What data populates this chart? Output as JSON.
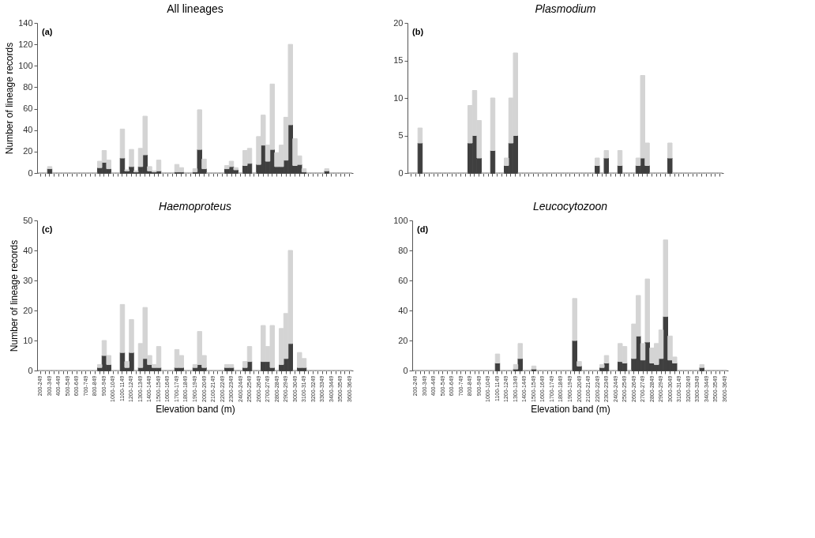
{
  "chart_data": [
    {
      "type": "bar",
      "title": "All lineages",
      "ylabel": "Number of lineage records",
      "annotations": [
        "(a)"
      ],
      "stacked": true,
      "grid": false,
      "ylim": [
        0,
        140
      ],
      "yticks": [
        0,
        20,
        40,
        60,
        80,
        100,
        120,
        140
      ],
      "categories": [
        null,
        null,
        null,
        null,
        null,
        null,
        null,
        null,
        null,
        null,
        null,
        null,
        null,
        null,
        null,
        null,
        null,
        null,
        null,
        null,
        null,
        null,
        null,
        null,
        null,
        null,
        null,
        null,
        null,
        null,
        null,
        null,
        null,
        null,
        null,
        null,
        null,
        null,
        null,
        null,
        null,
        null,
        null,
        null,
        null,
        null,
        null,
        null,
        null,
        null,
        null,
        null,
        null,
        null,
        null,
        null,
        null,
        null,
        null,
        null,
        null,
        null,
        null,
        null,
        null,
        null,
        null,
        null,
        null
      ],
      "series": [
        {
          "color": "#3f3f3f",
          "values": [
            0,
            0,
            4,
            0,
            0,
            0,
            0,
            0,
            0,
            0,
            0,
            0,
            0,
            5,
            10,
            4,
            0,
            0,
            14,
            2,
            6,
            1,
            6,
            17,
            2,
            1,
            2,
            0,
            0,
            0,
            1,
            1,
            0,
            0,
            1,
            22,
            4,
            0,
            0,
            0,
            0,
            4,
            6,
            3,
            0,
            7,
            9,
            0,
            8,
            26,
            11,
            22,
            6,
            6,
            12,
            45,
            7,
            8,
            1,
            0,
            0,
            0,
            0,
            2,
            0,
            0,
            0,
            0,
            0
          ]
        },
        {
          "color": "#d4d4d4",
          "values": [
            0,
            0,
            2,
            0,
            0,
            0,
            0,
            0,
            0,
            0,
            0,
            0,
            0,
            6,
            11,
            8,
            0,
            0,
            27,
            1,
            16,
            1,
            17,
            36,
            4,
            1,
            10,
            0,
            0,
            0,
            7,
            4,
            0,
            0,
            3,
            37,
            9,
            0,
            0,
            0,
            0,
            3,
            5,
            2,
            0,
            14,
            14,
            0,
            26,
            28,
            15,
            61,
            13,
            20,
            40,
            75,
            25,
            8,
            3,
            0,
            0,
            0,
            0,
            2,
            0,
            0,
            0,
            0,
            0
          ]
        }
      ]
    },
    {
      "type": "bar",
      "title": "Plasmodium",
      "annotations": [
        "(b)"
      ],
      "stacked": true,
      "grid": false,
      "ylim": [
        0,
        20
      ],
      "yticks": [
        0,
        5,
        10,
        15,
        20
      ],
      "categories": [
        null,
        null,
        null,
        null,
        null,
        null,
        null,
        null,
        null,
        null,
        null,
        null,
        null,
        null,
        null,
        null,
        null,
        null,
        null,
        null,
        null,
        null,
        null,
        null,
        null,
        null,
        null,
        null,
        null,
        null,
        null,
        null,
        null,
        null,
        null,
        null,
        null,
        null,
        null,
        null,
        null,
        null,
        null,
        null,
        null,
        null,
        null,
        null,
        null,
        null,
        null,
        null,
        null,
        null,
        null,
        null,
        null,
        null,
        null,
        null,
        null,
        null,
        null,
        null,
        null,
        null,
        null,
        null,
        null
      ],
      "series": [
        {
          "color": "#3f3f3f",
          "values": [
            0,
            0,
            4,
            0,
            0,
            0,
            0,
            0,
            0,
            0,
            0,
            0,
            0,
            4,
            5,
            2,
            0,
            0,
            3,
            0,
            0,
            1,
            4,
            5,
            0,
            0,
            0,
            0,
            0,
            0,
            0,
            0,
            0,
            0,
            0,
            0,
            0,
            0,
            0,
            0,
            0,
            1,
            0,
            2,
            0,
            0,
            1,
            0,
            0,
            0,
            1,
            2,
            1,
            0,
            0,
            0,
            0,
            2,
            0,
            0,
            0,
            0,
            0,
            0,
            0,
            0,
            0,
            0,
            0
          ]
        },
        {
          "color": "#d4d4d4",
          "values": [
            0,
            0,
            2,
            0,
            0,
            0,
            0,
            0,
            0,
            0,
            0,
            0,
            0,
            5,
            6,
            5,
            0,
            0,
            7,
            0,
            0,
            1,
            6,
            11,
            0,
            0,
            0,
            0,
            0,
            0,
            0,
            0,
            0,
            0,
            0,
            0,
            0,
            0,
            0,
            0,
            0,
            1,
            0,
            1,
            0,
            0,
            2,
            0,
            0,
            0,
            1,
            11,
            3,
            0,
            0,
            0,
            0,
            2,
            0,
            0,
            0,
            0,
            0,
            0,
            0,
            0,
            0,
            0,
            0
          ]
        }
      ]
    },
    {
      "type": "bar",
      "title": "Haemoproteus",
      "ylabel": "Number of lineage records",
      "xlabel": "Elevation band (m)",
      "annotations": [
        "(c)"
      ],
      "stacked": true,
      "grid": false,
      "ylim": [
        0,
        50
      ],
      "yticks": [
        0,
        10,
        20,
        30,
        40,
        50
      ],
      "categories": [
        "200-249",
        null,
        "300-349",
        null,
        "400-449",
        null,
        "500-549",
        null,
        "600-649",
        null,
        "700-749",
        null,
        "800-849",
        null,
        "900-949",
        null,
        "1000-1049",
        null,
        "1100-1149",
        null,
        "1200-1249",
        null,
        "1300-1349",
        null,
        "1400-1449",
        null,
        "1500-1549",
        null,
        "1600-1649",
        null,
        "1700-1749",
        null,
        "1800-1849",
        null,
        "1900-1949",
        null,
        "2000-2049",
        null,
        "2100-2149",
        null,
        "2200-2249",
        null,
        "2300-2349",
        null,
        "2400-2449",
        null,
        "2500-2549",
        null,
        "2600-2649",
        null,
        "2700-2749",
        null,
        "2800-2849",
        null,
        "2900-2949",
        null,
        "3000-3049",
        null,
        "3100-3149",
        null,
        "3200-3249",
        null,
        "3300-3349",
        null,
        "3400-3449",
        null,
        "3500-3549",
        null,
        "3600-3649"
      ],
      "series": [
        {
          "color": "#3f3f3f",
          "values": [
            0,
            0,
            0,
            0,
            0,
            0,
            0,
            0,
            0,
            0,
            0,
            0,
            0,
            1,
            5,
            2,
            0,
            0,
            6,
            1,
            6,
            0,
            1,
            4,
            2,
            1,
            1,
            0,
            0,
            0,
            1,
            1,
            0,
            0,
            1,
            2,
            1,
            0,
            0,
            0,
            0,
            1,
            1,
            0,
            0,
            1,
            3,
            0,
            0,
            3,
            3,
            1,
            0,
            2,
            4,
            9,
            0,
            1,
            1,
            0,
            0,
            0,
            0,
            0,
            0,
            0,
            0,
            0,
            0
          ]
        },
        {
          "color": "#d4d4d4",
          "values": [
            0,
            0,
            0,
            0,
            0,
            0,
            0,
            0,
            0,
            0,
            0,
            0,
            0,
            1,
            5,
            3,
            0,
            0,
            16,
            2,
            11,
            0,
            8,
            17,
            3,
            1,
            7,
            0,
            0,
            0,
            6,
            4,
            0,
            0,
            1,
            11,
            4,
            0,
            0,
            0,
            0,
            1,
            1,
            0,
            0,
            2,
            5,
            0,
            0,
            12,
            5,
            14,
            0,
            12,
            15,
            31,
            0,
            5,
            3,
            0,
            0,
            0,
            0,
            0,
            0,
            0,
            0,
            0,
            0
          ]
        }
      ]
    },
    {
      "type": "bar",
      "title": "Leucocytozoon",
      "xlabel": "Elevation band (m)",
      "annotations": [
        "(d)"
      ],
      "stacked": true,
      "grid": false,
      "ylim": [
        0,
        100
      ],
      "yticks": [
        0,
        20,
        40,
        60,
        80,
        100
      ],
      "categories": [
        "200-249",
        null,
        "300-349",
        null,
        "400-449",
        null,
        "500-549",
        null,
        "600-649",
        null,
        "700-749",
        null,
        "800-849",
        null,
        "900-949",
        null,
        "1000-1049",
        null,
        "1100-1149",
        null,
        "1200-1249",
        null,
        "1300-1349",
        null,
        "1400-1449",
        null,
        "1500-1549",
        null,
        "1600-1649",
        null,
        "1700-1749",
        null,
        "1800-1849",
        null,
        "1900-1949",
        null,
        "2000-2049",
        null,
        "2100-2149",
        null,
        "2200-2249",
        null,
        "2300-2349",
        null,
        "2400-2449",
        null,
        "2500-2549",
        null,
        "2600-2649",
        null,
        "2700-2749",
        null,
        "2800-2849",
        null,
        "2900-2949",
        null,
        "3000-3049",
        null,
        "3100-3149",
        null,
        "3200-3249",
        null,
        "3300-3349",
        null,
        "3400-3449",
        null,
        "3500-3549",
        null,
        "3600-3649"
      ],
      "series": [
        {
          "color": "#3f3f3f",
          "values": [
            0,
            0,
            0,
            0,
            0,
            0,
            0,
            0,
            0,
            0,
            0,
            0,
            0,
            0,
            0,
            0,
            0,
            0,
            5,
            0,
            0,
            0,
            1,
            8,
            0,
            0,
            1,
            0,
            0,
            0,
            0,
            0,
            0,
            0,
            0,
            20,
            3,
            0,
            0,
            0,
            0,
            2,
            5,
            0,
            0,
            6,
            5,
            0,
            8,
            23,
            7,
            19,
            5,
            4,
            8,
            36,
            7,
            5,
            0,
            0,
            0,
            0,
            0,
            2,
            0,
            0,
            0,
            0,
            0
          ]
        },
        {
          "color": "#d4d4d4",
          "values": [
            0,
            0,
            0,
            0,
            0,
            0,
            0,
            0,
            0,
            0,
            0,
            0,
            0,
            0,
            0,
            0,
            0,
            0,
            6,
            0,
            0,
            0,
            3,
            10,
            0,
            0,
            2,
            0,
            0,
            0,
            0,
            0,
            0,
            0,
            0,
            28,
            3,
            0,
            0,
            0,
            0,
            2,
            5,
            0,
            0,
            12,
            11,
            0,
            23,
            27,
            11,
            42,
            10,
            14,
            19,
            51,
            16,
            4,
            0,
            0,
            0,
            0,
            0,
            2,
            0,
            0,
            0,
            0,
            0
          ]
        }
      ]
    }
  ]
}
